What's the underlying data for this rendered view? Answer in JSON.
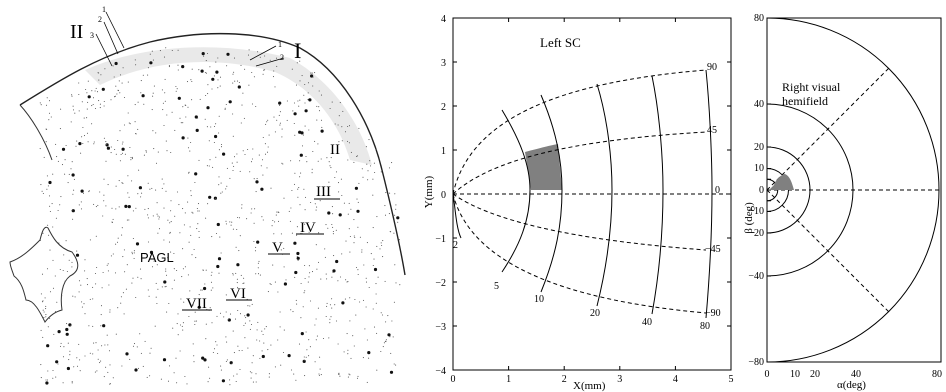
{
  "histology": {
    "layer_labels_outer": [
      "I",
      "II",
      "III",
      "IV",
      "V",
      "VI",
      "VII"
    ],
    "sublayer_II_label": "II",
    "sublayer_I_label": "I",
    "sublayer_numbers_II": [
      "1",
      "2",
      "3"
    ],
    "sublayer_numbers_I": [
      "1",
      "2"
    ],
    "pagl_label": "PAGL"
  },
  "sc_map": {
    "title": "Left SC",
    "xlabel": "X(mm)",
    "ylabel": "Y(mm)",
    "xticks": [
      "0",
      "1",
      "2",
      "3",
      "4",
      "5"
    ],
    "yticks": [
      "4",
      "3",
      "2",
      "1",
      "0",
      "−1",
      "−2",
      "−3",
      "−4"
    ],
    "iso_eccentricity_labels": [
      "2",
      "5",
      "10",
      "20",
      "40",
      "80"
    ],
    "iso_direction_labels": [
      "90",
      "45",
      "0",
      "−45",
      "−90"
    ],
    "highlight_color": "#808080"
  },
  "visual_field": {
    "title_line1": "Right visual",
    "title_line2": "hemifield",
    "xlabel": "α(deg)",
    "ylabel": "β (deg)",
    "xticks": [
      "0",
      "10",
      "20",
      "40",
      "80"
    ],
    "yticks": [
      "80",
      "40",
      "20",
      "10",
      "0",
      "−10",
      "−20",
      "−40",
      "−80"
    ]
  }
}
